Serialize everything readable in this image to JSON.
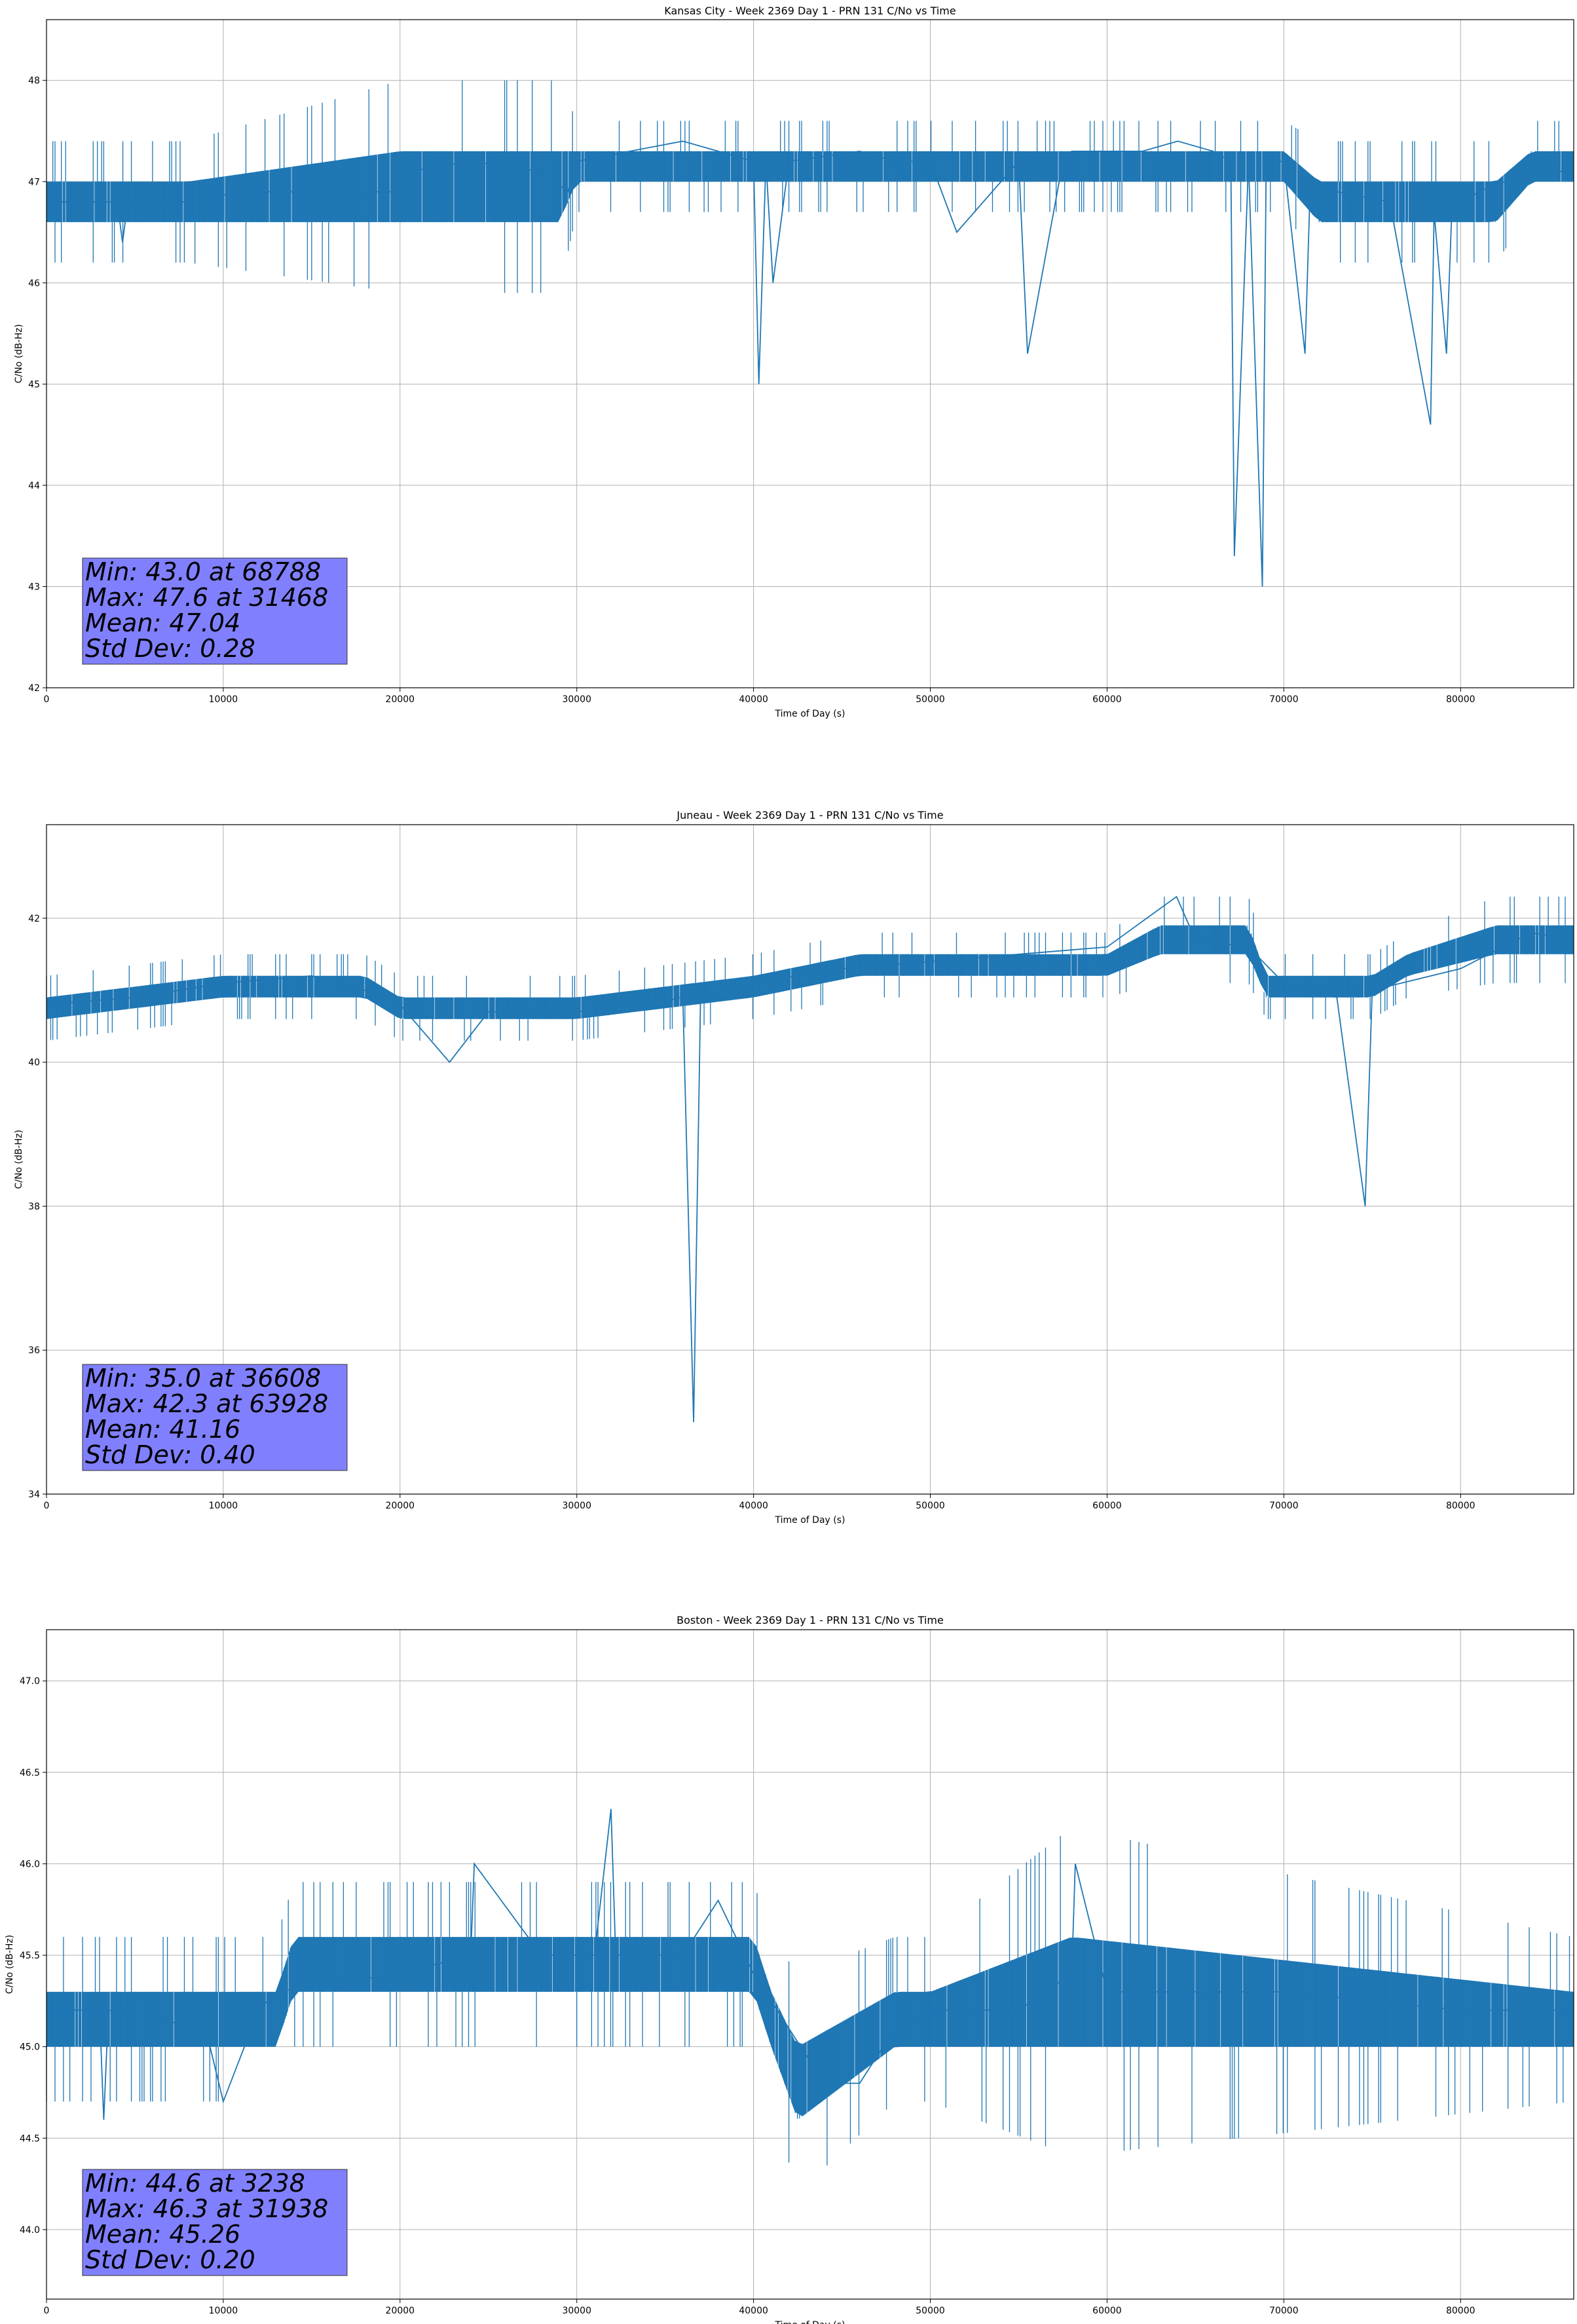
{
  "chart_data": [
    {
      "type": "line",
      "title": "Kansas City - Week 2369 Day 1 - PRN 131 C/No vs Time",
      "xlabel": "Time of Day (s)",
      "ylabel": "C/No (dB-Hz)",
      "xlim": [
        0,
        86400
      ],
      "ylim": [
        42.0,
        48.6
      ],
      "xticks": [
        0,
        10000,
        20000,
        30000,
        40000,
        50000,
        60000,
        70000,
        80000
      ],
      "yticks": [
        42,
        43,
        44,
        45,
        46,
        47,
        48
      ],
      "ytick_labels": [
        "42",
        "43",
        "44",
        "45",
        "46",
        "47",
        "48"
      ],
      "grid": true,
      "color": "#1f77b4",
      "series": [
        {
          "name": "C/No",
          "x": [
            0,
            4000,
            4300,
            4600,
            8000,
            11000,
            12000,
            14000,
            16000,
            20000,
            20500,
            24000,
            28000,
            29500,
            30000,
            33000,
            36000,
            38000,
            40000,
            40300,
            40700,
            41100,
            42000,
            46000,
            48000,
            50000,
            51500,
            55000,
            55500,
            57500,
            58000,
            62000,
            64000,
            66000,
            67000,
            67200,
            68000,
            68788,
            69000,
            70000,
            71200,
            71500,
            73000,
            76000,
            78300,
            78500,
            79200,
            79500,
            81000,
            84000,
            86400
          ],
          "y": [
            46.8,
            46.8,
            46.4,
            46.8,
            46.8,
            46.9,
            46.9,
            46.9,
            46.9,
            46.9,
            47.1,
            47.2,
            47.1,
            46.9,
            47.2,
            47.3,
            47.4,
            47.3,
            47.2,
            45.0,
            47.2,
            46.0,
            47.2,
            47.3,
            47.2,
            47.2,
            46.5,
            47.2,
            45.3,
            47.2,
            47.3,
            47.3,
            47.4,
            47.3,
            47.2,
            43.3,
            47.2,
            43.0,
            47.2,
            47.2,
            45.3,
            47.0,
            46.9,
            46.8,
            44.6,
            46.7,
            45.3,
            46.7,
            46.9,
            47.1,
            47.1
          ]
        }
      ],
      "band": {
        "x": [
          0,
          8000,
          20000,
          29000,
          30000,
          40000,
          50000,
          60000,
          62000,
          70000,
          72000,
          75000,
          78000,
          80000,
          82000,
          84000,
          86400
        ],
        "lo": [
          46.6,
          46.6,
          46.6,
          46.6,
          47.0,
          47.0,
          47.0,
          47.0,
          47.0,
          47.0,
          46.6,
          46.6,
          46.6,
          46.6,
          46.6,
          47.0,
          47.0
        ],
        "hi": [
          47.0,
          47.0,
          47.3,
          47.3,
          47.3,
          47.3,
          47.3,
          47.3,
          47.3,
          47.3,
          47.0,
          47.0,
          47.0,
          47.0,
          47.0,
          47.3,
          47.3
        ]
      },
      "stats": {
        "min": "Min: 43.0 at 68788",
        "max": "Max: 47.6 at 31468",
        "mean": "Mean: 47.04",
        "std": "Std Dev: 0.28"
      }
    },
    {
      "type": "line",
      "title": "Juneau - Week 2369 Day 1 - PRN 131 C/No vs Time",
      "xlabel": "Time of Day (s)",
      "ylabel": "C/No (dB-Hz)",
      "xlim": [
        0,
        86400
      ],
      "ylim": [
        34.0,
        43.3
      ],
      "xticks": [
        0,
        10000,
        20000,
        30000,
        40000,
        50000,
        60000,
        70000,
        80000
      ],
      "yticks": [
        34,
        36,
        38,
        40,
        42
      ],
      "ytick_labels": [
        "34",
        "36",
        "38",
        "40",
        "42"
      ],
      "grid": true,
      "color": "#1f77b4",
      "series": [
        {
          "name": "C/No",
          "x": [
            0,
            5000,
            10000,
            15000,
            18000,
            20000,
            22800,
            25000,
            30000,
            34000,
            36000,
            36608,
            37000,
            40000,
            45000,
            50000,
            55000,
            60000,
            63928,
            65000,
            68000,
            70000,
            73000,
            74600,
            75000,
            80000,
            84000,
            86400
          ],
          "y": [
            40.8,
            40.9,
            41.1,
            41.2,
            41.0,
            40.8,
            40.0,
            40.7,
            40.7,
            40.8,
            40.9,
            35.0,
            40.9,
            41.1,
            41.3,
            41.4,
            41.5,
            41.6,
            42.3,
            41.7,
            41.6,
            41.1,
            40.9,
            38.0,
            41.0,
            41.3,
            41.8,
            41.7
          ]
        }
      ],
      "band": {
        "x": [
          0,
          10000,
          18000,
          20000,
          30000,
          40000,
          46000,
          50000,
          60000,
          63000,
          68000,
          69000,
          75000,
          77000,
          82000,
          86400
        ],
        "lo": [
          40.6,
          40.9,
          40.9,
          40.6,
          40.6,
          40.9,
          41.2,
          41.2,
          41.2,
          41.5,
          41.5,
          40.9,
          40.9,
          41.2,
          41.5,
          41.5
        ],
        "hi": [
          40.9,
          41.2,
          41.2,
          40.9,
          40.9,
          41.2,
          41.5,
          41.5,
          41.5,
          41.9,
          41.9,
          41.2,
          41.2,
          41.5,
          41.9,
          41.9
        ]
      },
      "stats": {
        "min": "Min: 35.0 at 36608",
        "max": "Max: 42.3 at 63928",
        "mean": "Mean: 41.16",
        "std": "Std Dev: 0.40"
      }
    },
    {
      "type": "line",
      "title": "Boston - Week 2369 Day 1 - PRN 131 C/No vs Time",
      "xlabel": "Time of Day (s)",
      "ylabel": "C/No (dB-Hz)",
      "xlim": [
        0,
        86400
      ],
      "ylim": [
        43.62,
        47.28
      ],
      "xticks": [
        0,
        10000,
        20000,
        30000,
        40000,
        50000,
        60000,
        70000,
        80000
      ],
      "yticks": [
        44.0,
        44.5,
        45.0,
        45.5,
        46.0,
        46.5,
        47.0
      ],
      "ytick_labels": [
        "44.0",
        "44.5",
        "45.0",
        "45.5",
        "46.0",
        "46.5",
        "47.0"
      ],
      "grid": true,
      "color": "#1f77b4",
      "series": [
        {
          "name": "C/No",
          "x": [
            0,
            3000,
            3238,
            3500,
            9000,
            10000,
            12000,
            13000,
            20000,
            24000,
            24200,
            28000,
            31000,
            31938,
            32200,
            36000,
            38000,
            40000,
            42000,
            44000,
            46000,
            48000,
            50000,
            55000,
            58000,
            58200,
            60000,
            70000,
            80000,
            86400
          ],
          "y": [
            45.2,
            45.2,
            44.6,
            45.2,
            45.1,
            44.7,
            45.2,
            45.3,
            45.4,
            45.5,
            46.0,
            45.5,
            45.5,
            46.3,
            45.5,
            45.5,
            45.8,
            45.4,
            45.1,
            44.8,
            44.8,
            45.1,
            45.2,
            45.2,
            45.4,
            46.0,
            45.3,
            45.3,
            45.2,
            45.2
          ]
        }
      ],
      "band": {
        "x": [
          0,
          13000,
          14000,
          40000,
          41000,
          42500,
          48000,
          50000,
          58000,
          86400
        ],
        "lo": [
          45.0,
          45.0,
          45.3,
          45.3,
          45.0,
          44.6,
          45.0,
          45.0,
          45.0,
          45.0
        ],
        "hi": [
          45.3,
          45.3,
          45.6,
          45.6,
          45.3,
          45.0,
          45.3,
          45.3,
          45.6,
          45.3
        ]
      },
      "stats": {
        "min": "Min: 44.6 at 3238",
        "max": "Max: 46.3 at 31938",
        "mean": "Mean: 45.26",
        "std": "Std Dev: 0.20"
      }
    }
  ]
}
